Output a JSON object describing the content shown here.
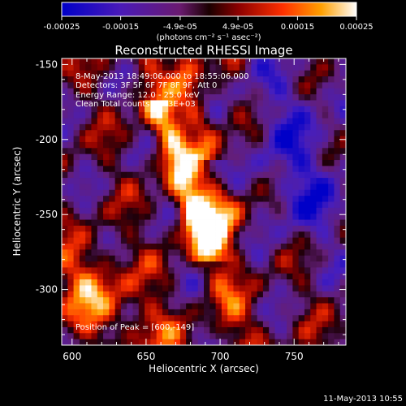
{
  "chart_data": {
    "type": "heatmap",
    "title": "Reconstructed RHESSI Image",
    "xlabel": "Heliocentric X (arcsec)",
    "ylabel": "Heliocentric Y (arcsec)",
    "xlim": [
      593,
      785
    ],
    "ylim": [
      -337,
      -146
    ],
    "x_ticks": [
      600,
      650,
      700,
      750
    ],
    "y_ticks": [
      -150,
      -200,
      -250,
      -300
    ],
    "colorbar": {
      "range": [
        -0.00025,
        0.00025
      ],
      "ticks": [
        -0.00025,
        -0.00015,
        -4.9e-05,
        4.9e-05,
        0.00015,
        0.00025
      ],
      "tick_labels": [
        "-0.00025",
        "-0.00015",
        "-4.9e-05",
        "4.9e-05",
        "0.00015",
        "0.00025"
      ],
      "units_label": "(photons cm⁻² s⁻¹ asec⁻²)"
    },
    "annotations": [
      "8-May-2013 18:49:06.000 to 18:55:06.000",
      "Detectors: 3F 5F 6F 7F 8F 9F, Att 0",
      "Energy Range: 12.0 - 25.0 keV",
      "Clean     Total counts: 8.43E+03"
    ],
    "peak_label": "Position of Peak = [600,-149]",
    "peak_position": [
      600,
      -149
    ],
    "grid": false,
    "legend": "none"
  },
  "footer": {
    "timestamp": "11-May-2013 10:55"
  }
}
